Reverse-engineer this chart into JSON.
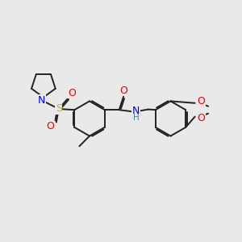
{
  "bg": "#e9e9e9",
  "bc": "#222222",
  "bw": 1.4,
  "dbo": 0.055,
  "colors": {
    "N": "#0000ee",
    "S": "#bbbb00",
    "O": "#ee0000",
    "H": "#448888",
    "C": "#222222"
  },
  "fontsize": 8.5
}
